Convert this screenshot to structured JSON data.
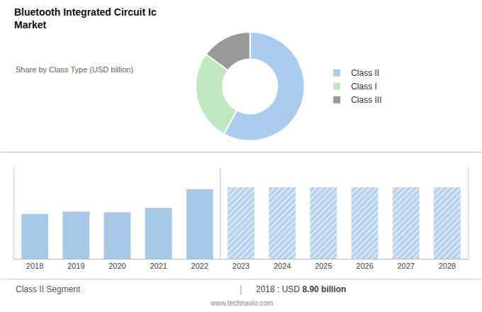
{
  "chart_data": [
    {
      "type": "pie",
      "title": "Bluetooth Integrated Circuit Ic\nMarket",
      "subtitle": "Share by Class Type (USD billion)",
      "categories": [
        "Class II",
        "Class I",
        "Class III"
      ],
      "values": [
        58,
        27,
        15
      ],
      "colors": [
        "#aaccee",
        "#c0e8c0",
        "#999999"
      ],
      "legend": "right"
    },
    {
      "type": "bar",
      "x": [
        2018,
        2019,
        2020,
        2021,
        2022,
        2023,
        2024,
        2025,
        2026,
        2027,
        2028
      ],
      "series": [
        {
          "color": "#a8c8e8",
          "values": [
            8.9,
            9.4,
            9.2,
            10.1,
            13.8,
            null,
            null,
            null,
            null,
            null,
            null
          ]
        },
        {
          "color": "#d0e4f4",
          "marker": "hatch",
          "values": [
            null,
            null,
            null,
            null,
            null,
            14.2,
            14.2,
            14.2,
            14.2,
            14.2,
            14.2
          ]
        }
      ],
      "xlim": [
        2017.5,
        2028.5
      ],
      "xticks": [
        2018,
        2019,
        2020,
        2021,
        2022,
        2023,
        2024,
        2025,
        2026,
        2027,
        2028
      ],
      "ylim": [
        0,
        18
      ],
      "yticks": [],
      "grid": false,
      "tick_labels": "x",
      "annotations": [
        "Class II Segment",
        "|",
        "2018 : USD ",
        "8.90 billion",
        "www.technavio.com"
      ]
    }
  ]
}
